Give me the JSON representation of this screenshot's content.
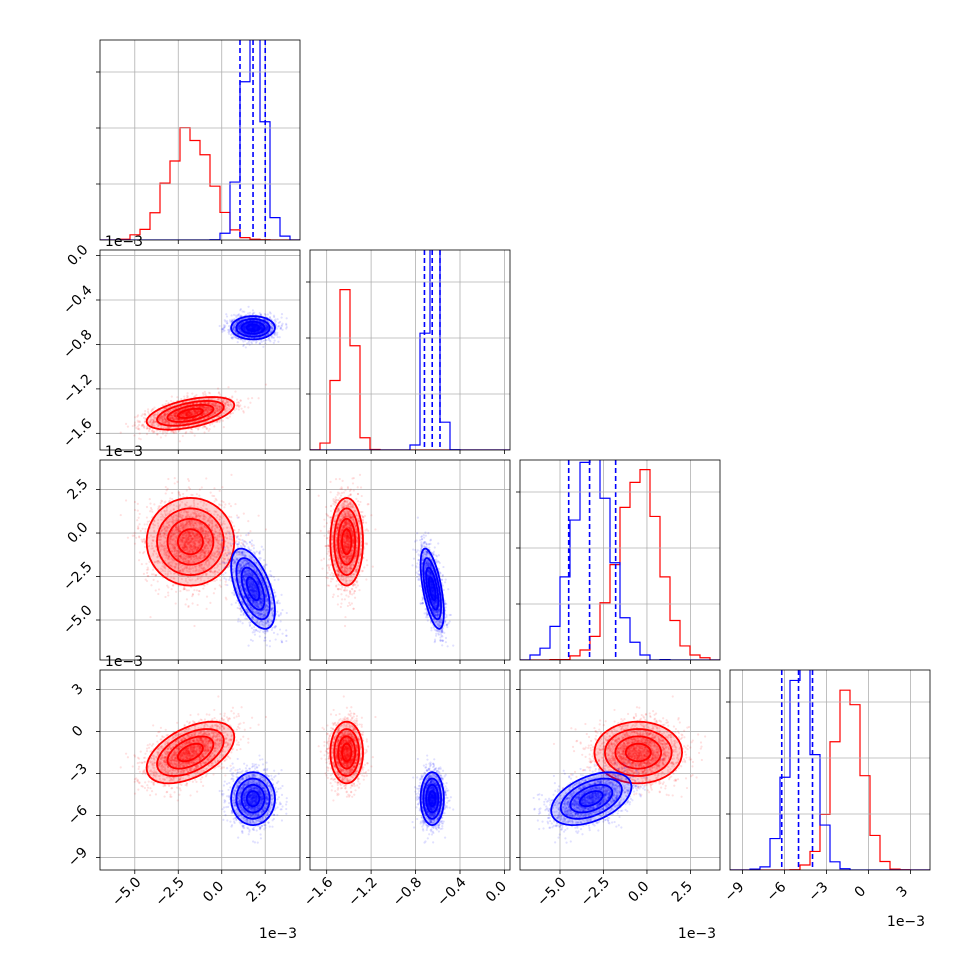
{
  "chart_data": {
    "type": "corner",
    "title": "",
    "dimension_labels": [
      "",
      "",
      "",
      ""
    ],
    "series": [
      {
        "name": "",
        "color": "#ff0000",
        "means": [
          -0.0018,
          -0.00142,
          -0.0005,
          -0.0015
        ],
        "sigmas": [
          0.0012,
          7e-05,
          0.0012,
          0.00105
        ],
        "correlations": {
          "0-1": 0.5,
          "0-2": 0.0,
          "0-3": 0.5,
          "1-2": 0.0,
          "1-3": 0.0,
          "2-3": 0.0
        }
      },
      {
        "name": "",
        "color": "#0000ff",
        "means": [
          0.0018,
          -0.00065,
          -0.0032,
          -0.0048
        ],
        "sigmas": [
          0.0006,
          5e-05,
          0.0011,
          0.0009
        ],
        "correlations": {
          "0-1": 0.0,
          "0-2": -0.55,
          "0-3": 0.0,
          "1-2": -0.6,
          "1-3": 0.0,
          "2-3": 0.45
        },
        "quantiles": [
          [
            0.00105,
            0.0018,
            0.0025
          ],
          [
            -0.00072,
            -0.00065,
            -0.00058
          ],
          [
            -0.0045,
            -0.0033,
            -0.0018
          ],
          [
            -0.0062,
            -0.005,
            -0.004
          ]
        ]
      }
    ],
    "axes": [
      {
        "range": [
          -0.007,
          0.0045
        ],
        "ticks": [
          -0.005,
          -0.0025,
          0.0,
          0.0025
        ],
        "tick_labels": [
          "−5.0",
          "−2.5",
          "0.0",
          "2.5"
        ],
        "exponent": "1e−3"
      },
      {
        "range": [
          -0.00175,
          5e-05
        ],
        "ticks": [
          -0.0016,
          -0.0012,
          -0.0008,
          -0.0004,
          0.0
        ],
        "tick_labels": [
          "−1.6",
          "−1.2",
          "−0.8",
          "−0.4",
          "0.0"
        ],
        "exponent": "1e−3"
      },
      {
        "range": [
          -0.0073,
          0.0042
        ],
        "ticks": [
          -0.005,
          -0.0025,
          0.0,
          0.0025
        ],
        "tick_labels": [
          "−5.0",
          "−2.5",
          "0.0",
          "2.5"
        ],
        "exponent": "1e−3"
      },
      {
        "range": [
          -0.0099,
          0.0044
        ],
        "ticks": [
          -0.009,
          -0.006,
          -0.003,
          0.0,
          0.003
        ],
        "tick_labels": [
          "−9",
          "−6",
          "−3",
          "0",
          "3"
        ],
        "exponent": "1e−3"
      }
    ],
    "grid": true,
    "legend": "none"
  }
}
